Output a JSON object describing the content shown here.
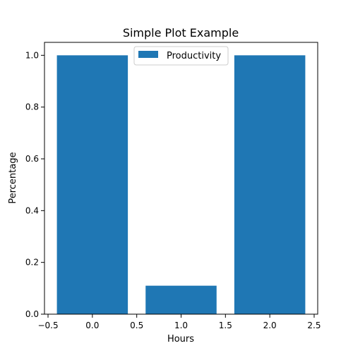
{
  "chart_data": {
    "type": "bar",
    "title": "Simple Plot Example",
    "xlabel": "Hours",
    "ylabel": "Percentage",
    "x": [
      0,
      1,
      2
    ],
    "series": [
      {
        "name": "Productivity",
        "values": [
          1.0,
          0.11,
          1.0
        ]
      }
    ],
    "bar_width": 0.8,
    "xlim": [
      -0.54,
      2.54
    ],
    "ylim": [
      0,
      1.05
    ],
    "xticks": [
      -0.5,
      0.0,
      0.5,
      1.0,
      1.5,
      2.0,
      2.5
    ],
    "xtick_labels": [
      "−0.5",
      "0.0",
      "0.5",
      "1.0",
      "1.5",
      "2.0",
      "2.5"
    ],
    "yticks": [
      0.0,
      0.2,
      0.4,
      0.6,
      0.8,
      1.0
    ],
    "ytick_labels": [
      "0.0",
      "0.2",
      "0.4",
      "0.6",
      "0.8",
      "1.0"
    ],
    "grid": false,
    "legend_position": "top-center",
    "colors": {
      "bar": "#1f77b4",
      "axes": "#000000",
      "legend_border": "#cccccc"
    }
  }
}
